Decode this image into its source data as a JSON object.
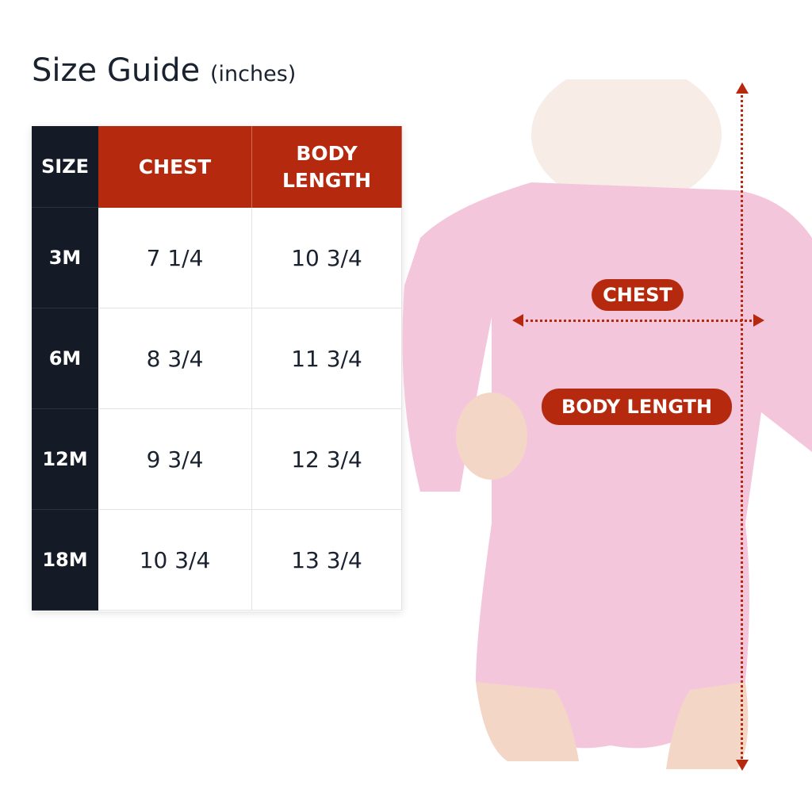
{
  "title": {
    "main": "Size Guide",
    "unit": "(inches)"
  },
  "table": {
    "headers": [
      "SIZE",
      "CHEST",
      "BODY LENGTH"
    ],
    "rows": [
      [
        "3M",
        "7 1/4",
        "10 3/4"
      ],
      [
        "6M",
        "8 3/4",
        "11 3/4"
      ],
      [
        "12M",
        "9 3/4",
        "12 3/4"
      ],
      [
        "18M",
        "10 3/4",
        "13 3/4"
      ]
    ]
  },
  "diagram": {
    "chest_label": "CHEST",
    "body_length_label": "BODY LENGTH"
  },
  "colors": {
    "accent": "#b52a0e",
    "dark": "#141b26",
    "garment": "#f4c6dc"
  }
}
